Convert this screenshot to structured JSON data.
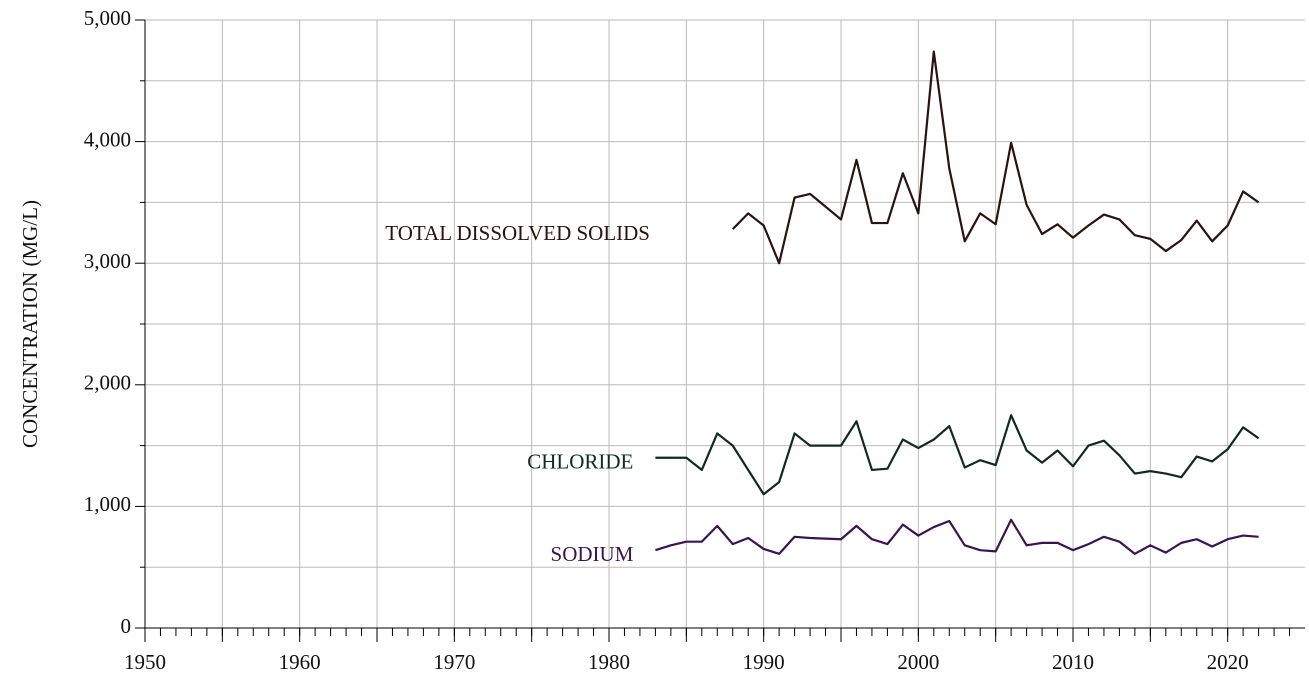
{
  "chart_data": {
    "type": "line",
    "y_label": "CONCENTRATION (MG/L)",
    "xlim": [
      1950,
      2025
    ],
    "xticks": [
      1950,
      1960,
      1970,
      1980,
      1990,
      2000,
      2010,
      2020
    ],
    "xgrid_minor": [
      1955,
      1965,
      1975,
      1985,
      1995,
      2005,
      2015
    ],
    "ylim": [
      0,
      5000
    ],
    "yticks": [
      0,
      {
        "value": 1000,
        "label": "1,000"
      },
      {
        "value": 2000,
        "label": "2,000"
      },
      {
        "value": 3000,
        "label": "3,000"
      },
      {
        "value": 4000,
        "label": "4,000"
      },
      {
        "value": 5000,
        "label": "5,000"
      }
    ],
    "ygrid_minor": [
      500,
      1500,
      2500,
      3500,
      4500
    ],
    "grid": true,
    "series": [
      {
        "name": "TOTAL DISSOLVED SOLIDS",
        "color": "#2a1212",
        "x": [
          1988,
          1989,
          1990,
          1991,
          1992,
          1993,
          1995,
          1996,
          1997,
          1998,
          1999,
          2000,
          2001,
          2002,
          2003,
          2004,
          2005,
          2006,
          2007,
          2008,
          2009,
          2010,
          2011,
          2012,
          2013,
          2014,
          2015,
          2016,
          2017,
          2018,
          2019,
          2020,
          2021,
          2022
        ],
        "values": [
          3280,
          3410,
          3310,
          3000,
          3540,
          3570,
          3360,
          3850,
          3330,
          3330,
          3740,
          3410,
          4740,
          3780,
          3180,
          3410,
          3320,
          3990,
          3480,
          3240,
          3320,
          3210,
          3310,
          3400,
          3360,
          3230,
          3200,
          3100,
          3190,
          3350,
          3180,
          3310,
          3590,
          3500
        ]
      },
      {
        "name": "CHLORIDE",
        "color": "#102a22",
        "x": [
          1983,
          1984,
          1985,
          1986,
          1987,
          1988,
          1990,
          1991,
          1992,
          1993,
          1994,
          1995,
          1996,
          1997,
          1998,
          1999,
          2000,
          2001,
          2002,
          2003,
          2004,
          2005,
          2006,
          2007,
          2008,
          2009,
          2010,
          2011,
          2012,
          2013,
          2014,
          2015,
          2016,
          2017,
          2018,
          2019,
          2020,
          2021,
          2022
        ],
        "values": [
          1400,
          1400,
          1400,
          1300,
          1600,
          1500,
          1100,
          1200,
          1600,
          1500,
          1500,
          1500,
          1700,
          1300,
          1310,
          1550,
          1480,
          1550,
          1660,
          1320,
          1380,
          1340,
          1750,
          1460,
          1360,
          1460,
          1330,
          1500,
          1540,
          1420,
          1270,
          1290,
          1270,
          1240,
          1410,
          1370,
          1470,
          1650,
          1560
        ]
      },
      {
        "name": "SODIUM",
        "color": "#3a1452",
        "x": [
          1983,
          1984,
          1985,
          1986,
          1987,
          1988,
          1989,
          1990,
          1991,
          1992,
          1993,
          1995,
          1996,
          1997,
          1998,
          1999,
          2000,
          2001,
          2002,
          2003,
          2004,
          2005,
          2006,
          2007,
          2008,
          2009,
          2010,
          2011,
          2012,
          2013,
          2014,
          2015,
          2016,
          2017,
          2018,
          2019,
          2020,
          2021,
          2022
        ],
        "values": [
          640,
          680,
          710,
          710,
          840,
          690,
          740,
          650,
          610,
          750,
          740,
          730,
          840,
          730,
          690,
          850,
          760,
          830,
          880,
          680,
          640,
          630,
          890,
          680,
          700,
          700,
          640,
          690,
          750,
          710,
          610,
          680,
          620,
          700,
          730,
          670,
          730,
          760,
          750
        ]
      }
    ]
  }
}
